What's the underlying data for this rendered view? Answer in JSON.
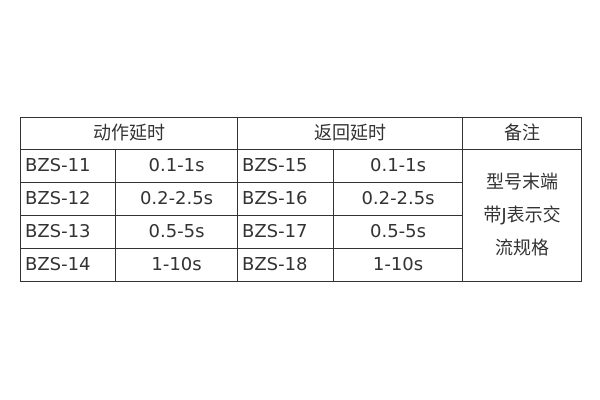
{
  "headers": {
    "action_delay": "动作延时",
    "return_delay": "返回延时",
    "note": "备注"
  },
  "rows": [
    {
      "action_model": "BZS-11",
      "action_range": "0.1-1s",
      "return_model": "BZS-15",
      "return_range": "0.1-1s"
    },
    {
      "action_model": "BZS-12",
      "action_range": "0.2-2.5s",
      "return_model": "BZS-16",
      "return_range": "0.2-2.5s"
    },
    {
      "action_model": "BZS-13",
      "action_range": "0.5-5s",
      "return_model": "BZS-17",
      "return_range": "0.5-5s"
    },
    {
      "action_model": "BZS-14",
      "action_range": "1-10s",
      "return_model": "BZS-18",
      "return_range": "1-10s"
    }
  ],
  "note_lines": [
    "型号末端",
    "带J表示交",
    "流规格"
  ]
}
